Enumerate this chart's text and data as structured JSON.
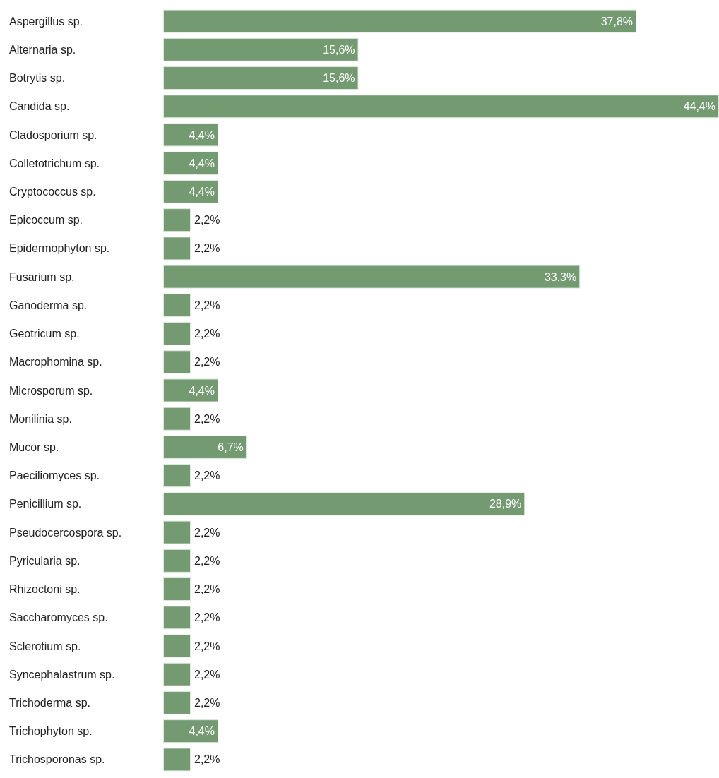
{
  "chart_data": {
    "type": "bar",
    "orientation": "horizontal",
    "categories": [
      "Aspergillus sp.",
      "Alternaria sp.",
      "Botrytis sp.",
      "Candida sp.",
      "Cladosporium sp.",
      "Colletotrichum sp.",
      "Cryptococcus sp.",
      "Epicoccum sp.",
      "Epidermophyton sp.",
      "Fusarium sp.",
      "Ganoderma sp.",
      "Geotricum sp.",
      "Macrophomina sp.",
      "Microsporum sp.",
      "Monilinia sp.",
      "Mucor sp.",
      "Paeciliomyces sp.",
      "Penicillium sp.",
      "Pseudocercospora sp.",
      "Pyricularia sp.",
      "Rhizoctoni sp.",
      "Saccharomyces sp.",
      "Sclerotium sp.",
      "Syncephalastrum sp.",
      "Trichoderma sp.",
      "Trichophyton sp.",
      "Trichosporonas sp."
    ],
    "values": [
      37.8,
      15.6,
      15.6,
      44.4,
      4.4,
      4.4,
      4.4,
      2.2,
      2.2,
      33.3,
      2.2,
      2.2,
      2.2,
      4.4,
      2.2,
      6.7,
      2.2,
      28.9,
      2.2,
      2.2,
      2.2,
      2.2,
      2.2,
      2.2,
      2.2,
      4.4,
      2.2
    ],
    "value_labels": [
      "37,8%",
      "15,6%",
      "15,6%",
      "44,4%",
      "4,4%",
      "4,4%",
      "4,4%",
      "2,2%",
      "2,2%",
      "33,3%",
      "2,2%",
      "2,2%",
      "2,2%",
      "4,4%",
      "2,2%",
      "6,7%",
      "2,2%",
      "28,9%",
      "2,2%",
      "2,2%",
      "2,2%",
      "2,2%",
      "2,2%",
      "2,2%",
      "2,2%",
      "4,4%",
      "2,2%"
    ],
    "color": "#739a70"
  }
}
